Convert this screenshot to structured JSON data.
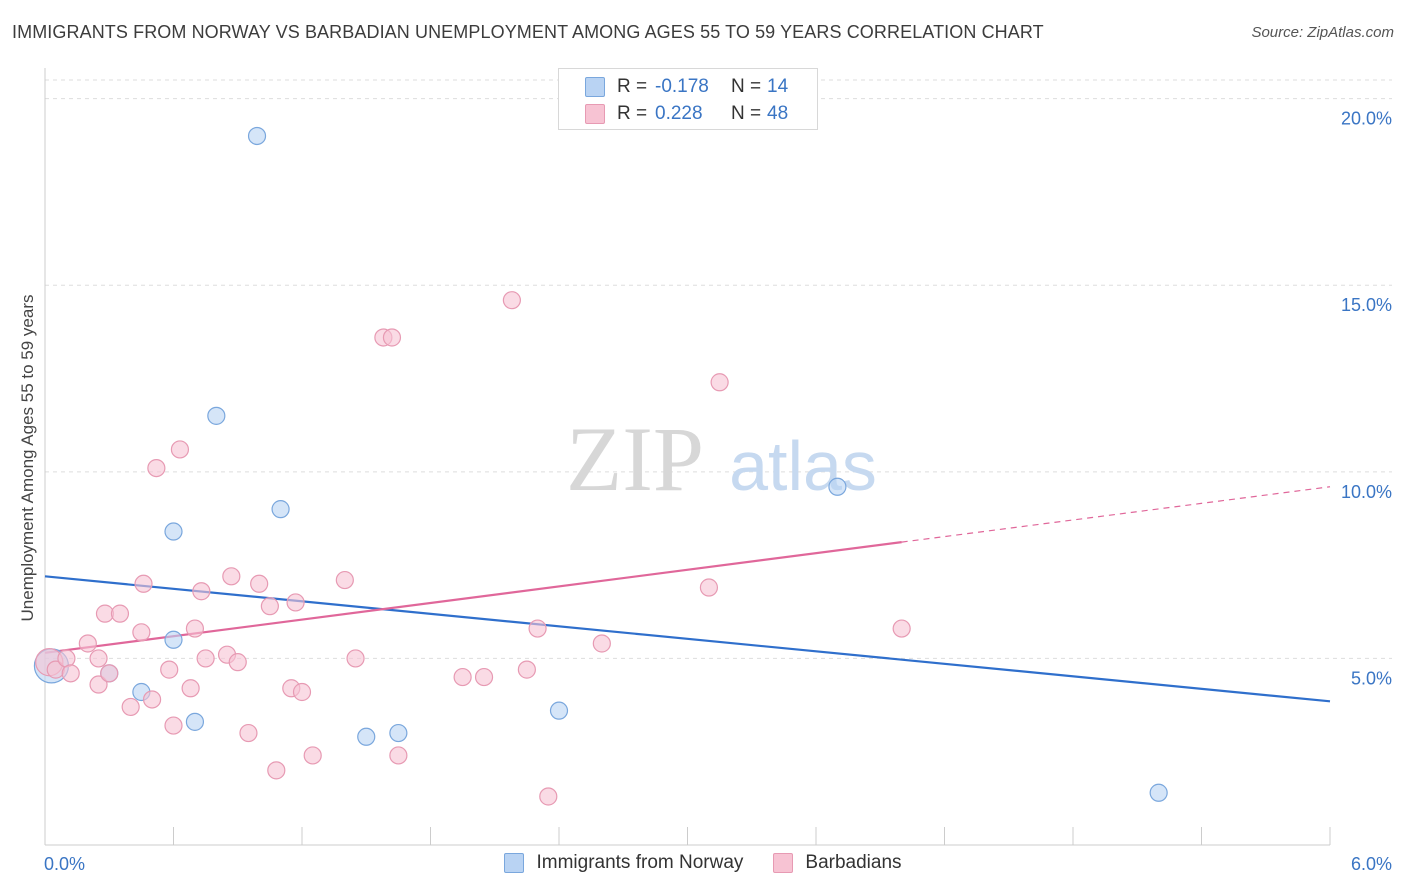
{
  "title": "IMMIGRANTS FROM NORWAY VS BARBADIAN UNEMPLOYMENT AMONG AGES 55 TO 59 YEARS CORRELATION CHART",
  "source": "Source: ZipAtlas.com",
  "watermark": {
    "zip": "ZIP",
    "atlas": "atlas"
  },
  "legend": {
    "rows": [
      {
        "r_label": "R =",
        "r_value": "-0.178",
        "n_label": "N =",
        "n_value": "14"
      },
      {
        "r_label": "R =",
        "r_value": "0.228",
        "n_label": "N =",
        "n_value": "48"
      }
    ]
  },
  "bottom_legend": [
    "Immigrants from Norway",
    "Barbadians"
  ],
  "colors": {
    "blue_fill": "#b9d3f3",
    "blue_stroke": "#7aa7dd",
    "blue_line": "#2f6fcc",
    "pink_fill": "#f7c3d3",
    "pink_stroke": "#e79ab3",
    "pink_line": "#e0679a",
    "axis_text": "#3a75c4",
    "grid": "#dddddd"
  },
  "chart_data": {
    "type": "scatter",
    "title": "IMMIGRANTS FROM NORWAY VS BARBADIAN UNEMPLOYMENT AMONG AGES 55 TO 59 YEARS CORRELATION CHART",
    "xlabel": "",
    "ylabel": "Unemployment Among Ages 55 to 59 years",
    "xlim": [
      0,
      6
    ],
    "ylim": [
      0,
      20.5
    ],
    "x_tick_labels": [
      "0.0%",
      "6.0%"
    ],
    "y_ticks": [
      5,
      10,
      15,
      20
    ],
    "y_tick_labels": [
      "5.0%",
      "10.0%",
      "15.0%",
      "20.0%"
    ],
    "series": [
      {
        "name": "Immigrants from Norway",
        "color": "blue",
        "points": [
          [
            0.03,
            4.8,
            2.0
          ],
          [
            0.3,
            4.6,
            1
          ],
          [
            0.45,
            4.1,
            1
          ],
          [
            0.6,
            5.5,
            1
          ],
          [
            0.6,
            8.4,
            1
          ],
          [
            0.7,
            3.3,
            1
          ],
          [
            0.8,
            11.5,
            1
          ],
          [
            0.99,
            19.0,
            1
          ],
          [
            1.1,
            9.0,
            1
          ],
          [
            1.5,
            2.9,
            1
          ],
          [
            1.65,
            3.0,
            1
          ],
          [
            2.4,
            3.6,
            1
          ],
          [
            3.7,
            9.6,
            1
          ],
          [
            5.2,
            1.4,
            1
          ]
        ],
        "trend": {
          "x": [
            0,
            6
          ],
          "y": [
            7.2,
            3.85
          ],
          "dashed_from": null
        }
      },
      {
        "name": "Barbadians",
        "color": "pink",
        "points": [
          [
            0.02,
            4.9,
            1.6
          ],
          [
            0.05,
            4.7,
            1
          ],
          [
            0.1,
            5.0,
            1
          ],
          [
            0.12,
            4.6,
            1
          ],
          [
            0.2,
            5.4,
            1
          ],
          [
            0.25,
            5.0,
            1
          ],
          [
            0.25,
            4.3,
            1
          ],
          [
            0.28,
            6.2,
            1
          ],
          [
            0.3,
            4.6,
            1
          ],
          [
            0.35,
            6.2,
            1
          ],
          [
            0.4,
            3.7,
            1
          ],
          [
            0.45,
            5.7,
            1
          ],
          [
            0.46,
            7.0,
            1
          ],
          [
            0.5,
            3.9,
            1
          ],
          [
            0.52,
            10.1,
            1
          ],
          [
            0.58,
            4.7,
            1
          ],
          [
            0.6,
            3.2,
            1
          ],
          [
            0.63,
            10.6,
            1
          ],
          [
            0.68,
            4.2,
            1
          ],
          [
            0.7,
            5.8,
            1
          ],
          [
            0.73,
            6.8,
            1
          ],
          [
            0.75,
            5.0,
            1
          ],
          [
            0.85,
            5.1,
            1
          ],
          [
            0.87,
            7.2,
            1
          ],
          [
            0.9,
            4.9,
            1
          ],
          [
            0.95,
            3.0,
            1
          ],
          [
            1.0,
            7.0,
            1
          ],
          [
            1.05,
            6.4,
            1
          ],
          [
            1.08,
            2.0,
            1
          ],
          [
            1.15,
            4.2,
            1
          ],
          [
            1.17,
            6.5,
            1
          ],
          [
            1.2,
            4.1,
            1
          ],
          [
            1.25,
            2.4,
            1
          ],
          [
            1.4,
            7.1,
            1
          ],
          [
            1.45,
            5.0,
            1
          ],
          [
            1.58,
            13.6,
            1
          ],
          [
            1.62,
            13.6,
            1
          ],
          [
            1.65,
            2.4,
            1
          ],
          [
            1.95,
            4.5,
            1
          ],
          [
            2.05,
            4.5,
            1
          ],
          [
            2.18,
            14.6,
            1
          ],
          [
            2.25,
            4.7,
            1
          ],
          [
            2.3,
            5.8,
            1
          ],
          [
            2.35,
            1.3,
            1
          ],
          [
            2.6,
            5.4,
            1
          ],
          [
            3.1,
            6.9,
            1
          ],
          [
            3.15,
            12.4,
            1
          ],
          [
            4.0,
            5.8,
            1
          ]
        ],
        "trend": {
          "x": [
            0,
            6
          ],
          "y": [
            5.15,
            9.6
          ],
          "dashed_from": 4.0
        }
      }
    ]
  }
}
